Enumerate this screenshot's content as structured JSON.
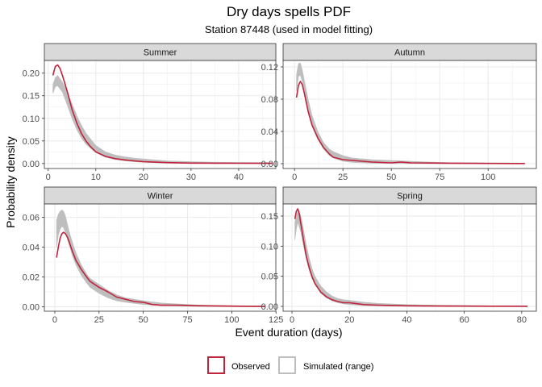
{
  "chart_data": {
    "type": "line",
    "title": "Dry days spells PDF",
    "subtitle": "Station 87448 (used in model fitting)",
    "xlabel": "Event duration (days)",
    "ylabel": "Probability density",
    "grid": true,
    "legend_position": "bottom",
    "legend": [
      {
        "name": "Observed",
        "color": "#c0243c"
      },
      {
        "name": "Simulated (range)",
        "color": "#bebebe"
      }
    ],
    "panels": [
      {
        "name": "Summer",
        "xlim": [
          -0.8,
          47.8
        ],
        "ylim": [
          -0.011,
          0.228
        ],
        "xticks": [
          0,
          10,
          20,
          30,
          40
        ],
        "xtick_labels": [
          "0",
          "10",
          "20",
          "30",
          "40"
        ],
        "yticks": [
          0.0,
          0.05,
          0.1,
          0.15,
          0.2
        ],
        "ytick_labels": [
          "0.00",
          "0.05",
          "0.10",
          "0.15",
          "0.20"
        ],
        "observed": {
          "x": [
            1,
            1.5,
            2,
            2.5,
            3,
            4,
            5,
            6,
            7,
            8,
            9,
            10,
            12,
            14,
            16,
            18,
            20,
            25,
            30,
            35,
            40,
            47
          ],
          "y": [
            0.195,
            0.215,
            0.218,
            0.21,
            0.195,
            0.16,
            0.12,
            0.09,
            0.066,
            0.049,
            0.036,
            0.026,
            0.016,
            0.011,
            0.008,
            0.006,
            0.004,
            0.002,
            0.001,
            0.0008,
            0.0006,
            0.0005
          ]
        },
        "simulated_range": {
          "x": [
            1,
            1.5,
            2,
            3,
            4,
            5,
            6,
            7,
            8,
            10,
            12,
            14,
            16,
            18,
            20,
            25,
            30,
            35,
            40,
            47
          ],
          "low": [
            0.155,
            0.17,
            0.172,
            0.158,
            0.13,
            0.1,
            0.075,
            0.056,
            0.042,
            0.024,
            0.014,
            0.009,
            0.006,
            0.004,
            0.003,
            0.001,
            0.0005,
            0.0003,
            0.0002,
            0.0001
          ],
          "high": [
            0.175,
            0.19,
            0.195,
            0.18,
            0.158,
            0.132,
            0.106,
            0.084,
            0.066,
            0.04,
            0.026,
            0.019,
            0.015,
            0.012,
            0.01,
            0.006,
            0.004,
            0.003,
            0.0025,
            0.002
          ]
        }
      },
      {
        "name": "Autumn",
        "xlim": [
          -5.9,
          124.9
        ],
        "ylim": [
          -0.006,
          0.128
        ],
        "xticks": [
          0,
          25,
          50,
          75,
          100
        ],
        "xtick_labels": [
          "0",
          "25",
          "50",
          "75",
          "100"
        ],
        "yticks": [
          0.0,
          0.04,
          0.08,
          0.12
        ],
        "ytick_labels": [
          "0.00",
          "0.04",
          "0.08",
          "0.12"
        ],
        "observed": {
          "x": [
            1,
            2,
            3,
            4,
            5,
            7,
            9,
            12,
            15,
            18,
            20,
            25,
            30,
            35,
            40,
            45,
            50,
            55,
            60,
            70,
            80,
            90,
            100,
            119
          ],
          "y": [
            0.082,
            0.097,
            0.102,
            0.098,
            0.088,
            0.065,
            0.048,
            0.032,
            0.02,
            0.012,
            0.008,
            0.005,
            0.004,
            0.003,
            0.002,
            0.0015,
            0.001,
            0.002,
            0.001,
            0.0008,
            0.0005,
            0.0004,
            0.0003,
            0.0002
          ]
        },
        "simulated_range": {
          "x": [
            1,
            2,
            3,
            4,
            5,
            7,
            9,
            12,
            15,
            18,
            20,
            25,
            30,
            40,
            50,
            60,
            70,
            80,
            100,
            119
          ],
          "low": [
            0.09,
            0.108,
            0.11,
            0.102,
            0.09,
            0.068,
            0.048,
            0.03,
            0.018,
            0.01,
            0.007,
            0.003,
            0.0015,
            0.0005,
            0.0003,
            0.0002,
            0.0001,
            0.0001,
            0.0001,
            0.0001
          ],
          "high": [
            0.11,
            0.124,
            0.125,
            0.116,
            0.104,
            0.08,
            0.06,
            0.04,
            0.026,
            0.018,
            0.015,
            0.01,
            0.007,
            0.005,
            0.004,
            0.003,
            0.002,
            0.0015,
            0.001,
            0.0008
          ]
        }
      },
      {
        "name": "Winter",
        "xlim": [
          -5.9,
          124.9
        ],
        "ylim": [
          -0.003,
          0.069
        ],
        "xticks": [
          0,
          25,
          50,
          75,
          100,
          125
        ],
        "xtick_labels": [
          "0",
          "25",
          "50",
          "75",
          "100",
          "125"
        ],
        "yticks": [
          0.0,
          0.02,
          0.04,
          0.06
        ],
        "ytick_labels": [
          "0.00",
          "0.02",
          "0.04",
          "0.06"
        ],
        "observed": {
          "x": [
            1,
            2,
            3,
            4,
            5,
            6,
            7,
            8,
            10,
            12,
            15,
            18,
            20,
            25,
            30,
            35,
            40,
            45,
            50,
            55,
            60,
            70,
            80,
            90,
            100,
            110,
            119
          ],
          "y": [
            0.033,
            0.04,
            0.046,
            0.049,
            0.05,
            0.049,
            0.047,
            0.044,
            0.037,
            0.031,
            0.025,
            0.02,
            0.017,
            0.013,
            0.01,
            0.0065,
            0.005,
            0.0035,
            0.003,
            0.0015,
            0.001,
            0.001,
            0.0007,
            0.0006,
            0.0004,
            0.0003,
            0.0002
          ]
        },
        "simulated_range": {
          "x": [
            1,
            2,
            3,
            4,
            5,
            6,
            7,
            8,
            10,
            12,
            15,
            18,
            20,
            25,
            30,
            35,
            40,
            50,
            60,
            70,
            80,
            90,
            100,
            119
          ],
          "low": [
            0.04,
            0.048,
            0.052,
            0.054,
            0.053,
            0.05,
            0.046,
            0.042,
            0.034,
            0.028,
            0.021,
            0.016,
            0.013,
            0.009,
            0.006,
            0.004,
            0.003,
            0.0015,
            0.0008,
            0.0005,
            0.0003,
            0.0002,
            0.0001,
            0.0001
          ],
          "high": [
            0.058,
            0.062,
            0.064,
            0.065,
            0.064,
            0.061,
            0.056,
            0.051,
            0.043,
            0.036,
            0.028,
            0.022,
            0.019,
            0.015,
            0.011,
            0.008,
            0.006,
            0.004,
            0.0025,
            0.0018,
            0.0012,
            0.0009,
            0.0007,
            0.0005
          ]
        }
      },
      {
        "name": "Spring",
        "xlim": [
          -3.1,
          85.1
        ],
        "ylim": [
          -0.008,
          0.17
        ],
        "xticks": [
          0,
          20,
          40,
          60,
          80
        ],
        "xtick_labels": [
          "0",
          "20",
          "40",
          "60",
          "80"
        ],
        "yticks": [
          0.0,
          0.05,
          0.1,
          0.15
        ],
        "ytick_labels": [
          "0.00",
          "0.05",
          "0.10",
          "0.15"
        ],
        "observed": {
          "x": [
            1,
            1.5,
            2,
            2.5,
            3,
            4,
            5,
            6,
            7,
            8,
            10,
            12,
            14,
            16,
            18,
            20,
            25,
            30,
            35,
            40,
            50,
            60,
            70,
            82
          ],
          "y": [
            0.145,
            0.158,
            0.162,
            0.155,
            0.14,
            0.11,
            0.083,
            0.064,
            0.049,
            0.038,
            0.024,
            0.016,
            0.011,
            0.008,
            0.006,
            0.006,
            0.003,
            0.002,
            0.0015,
            0.001,
            0.0005,
            0.0004,
            0.0003,
            0.0002
          ]
        },
        "simulated_range": {
          "x": [
            1,
            1.5,
            2,
            3,
            4,
            5,
            6,
            7,
            8,
            10,
            12,
            14,
            16,
            18,
            20,
            25,
            30,
            40,
            50,
            60,
            70,
            82
          ],
          "low": [
            0.11,
            0.128,
            0.14,
            0.125,
            0.1,
            0.078,
            0.06,
            0.046,
            0.036,
            0.022,
            0.014,
            0.009,
            0.006,
            0.004,
            0.003,
            0.0015,
            0.0008,
            0.0003,
            0.0002,
            0.0001,
            0.0001,
            0.0001
          ],
          "high": [
            0.14,
            0.15,
            0.158,
            0.152,
            0.128,
            0.102,
            0.08,
            0.062,
            0.05,
            0.034,
            0.024,
            0.017,
            0.013,
            0.011,
            0.01,
            0.007,
            0.005,
            0.003,
            0.002,
            0.0015,
            0.001,
            0.0008
          ]
        }
      }
    ]
  }
}
